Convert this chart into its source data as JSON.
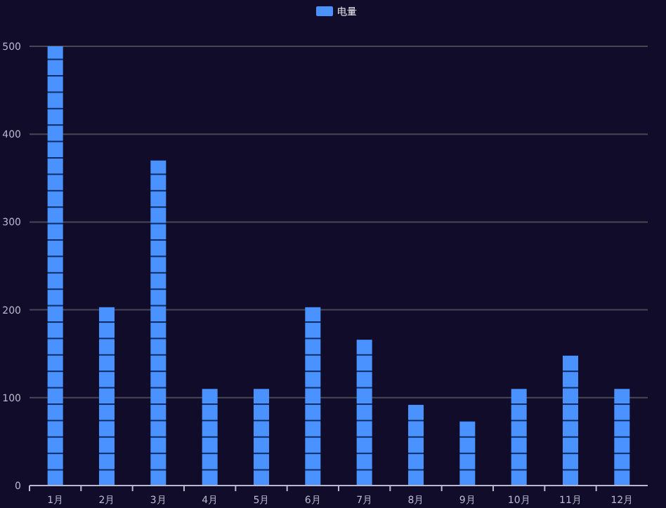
{
  "chart_data": {
    "type": "bar",
    "categories": [
      "1月",
      "2月",
      "3月",
      "4月",
      "5月",
      "6月",
      "7月",
      "8月",
      "9月",
      "10月",
      "11月",
      "12月"
    ],
    "series": [
      {
        "name": "电量",
        "color": "#4992ff",
        "values": [
          500,
          203,
          370,
          110,
          110,
          203,
          166,
          92,
          73,
          110,
          148,
          110
        ]
      }
    ],
    "ylim": [
      0,
      500
    ],
    "yticks": [
      0,
      100,
      200,
      300,
      400,
      500
    ],
    "grid": "y",
    "legend": "top"
  }
}
